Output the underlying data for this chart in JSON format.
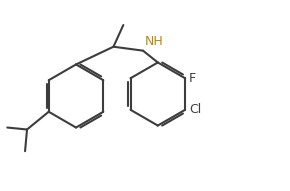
{
  "background": "#ffffff",
  "bond_color": "#3d3d3d",
  "bond_width": 1.5,
  "label_NH": "NH",
  "label_F": "F",
  "label_Cl": "Cl",
  "NH_color": "#b8860b",
  "F_color": "#3d3d3d",
  "Cl_color": "#3d3d3d",
  "figsize": [
    2.9,
    1.91
  ],
  "dpi": 100
}
